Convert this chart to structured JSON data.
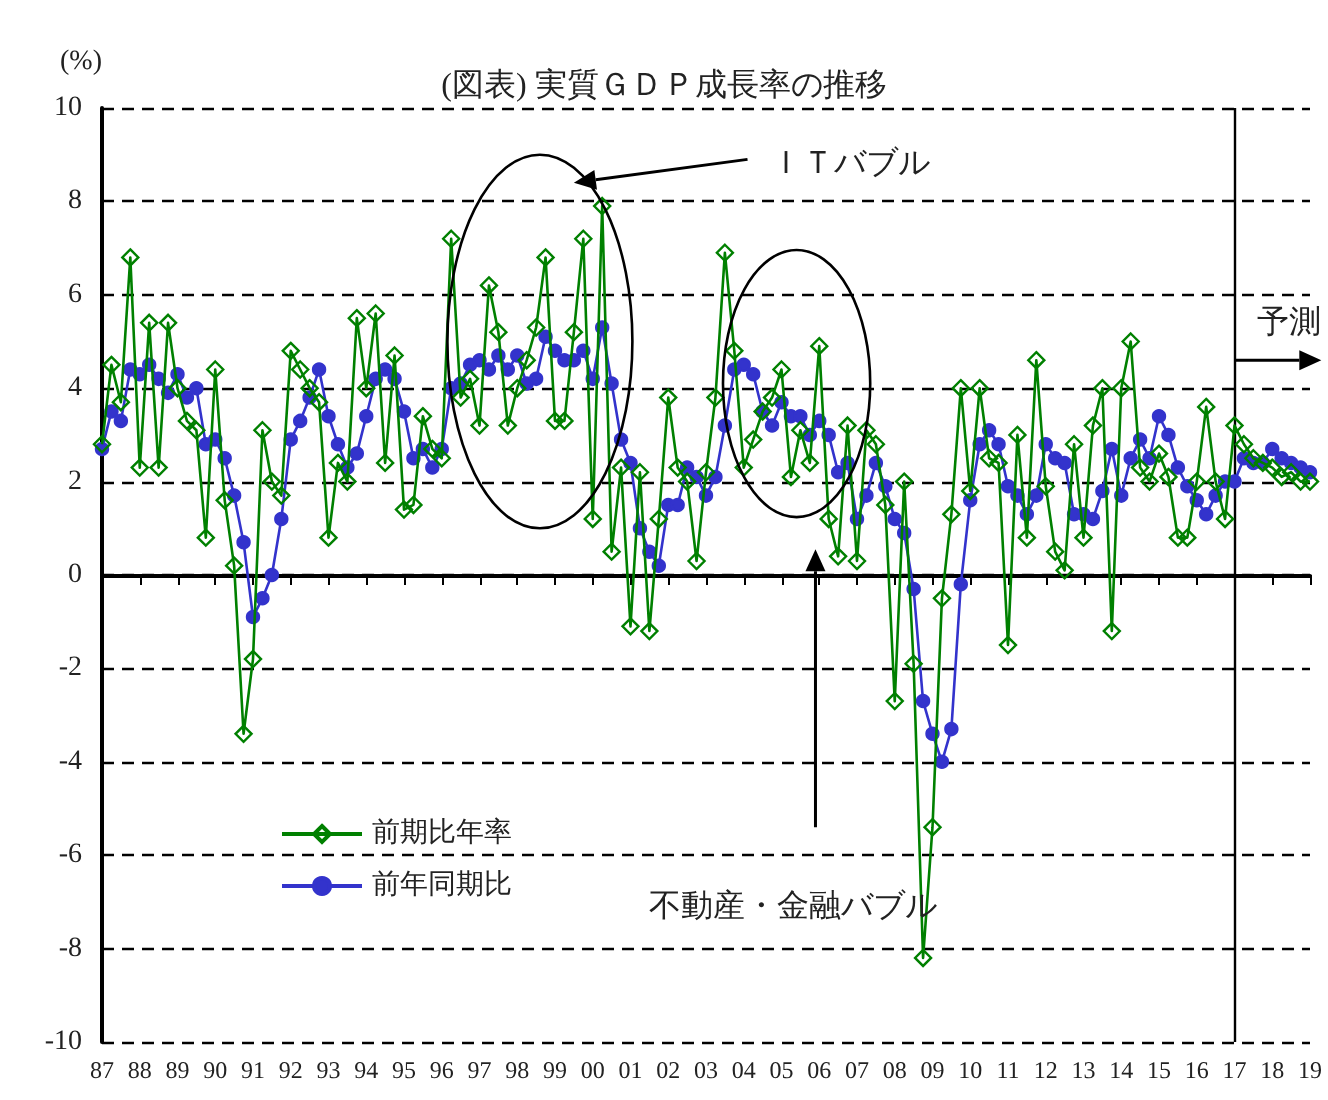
{
  "chart_data": {
    "type": "line",
    "title": "(図表) 実質ＧＤＰ成長率の推移",
    "ylabel": "(%)",
    "xlim": [
      1987,
      2019
    ],
    "xticks": [
      {
        "value": 1987,
        "label": "87"
      },
      {
        "value": 1988,
        "label": "88"
      },
      {
        "value": 1989,
        "label": "89"
      },
      {
        "value": 1990,
        "label": "90"
      },
      {
        "value": 1991,
        "label": "91"
      },
      {
        "value": 1992,
        "label": "92"
      },
      {
        "value": 1993,
        "label": "93"
      },
      {
        "value": 1994,
        "label": "94"
      },
      {
        "value": 1995,
        "label": "95"
      },
      {
        "value": 1996,
        "label": "96"
      },
      {
        "value": 1997,
        "label": "97"
      },
      {
        "value": 1998,
        "label": "98"
      },
      {
        "value": 1999,
        "label": "99"
      },
      {
        "value": 2000,
        "label": "00"
      },
      {
        "value": 2001,
        "label": "01"
      },
      {
        "value": 2002,
        "label": "02"
      },
      {
        "value": 2003,
        "label": "03"
      },
      {
        "value": 2004,
        "label": "04"
      },
      {
        "value": 2005,
        "label": "05"
      },
      {
        "value": 2006,
        "label": "06"
      },
      {
        "value": 2007,
        "label": "07"
      },
      {
        "value": 2008,
        "label": "08"
      },
      {
        "value": 2009,
        "label": "09"
      },
      {
        "value": 2010,
        "label": "10"
      },
      {
        "value": 2011,
        "label": "11"
      },
      {
        "value": 2012,
        "label": "12"
      },
      {
        "value": 2013,
        "label": "13"
      },
      {
        "value": 2014,
        "label": "14"
      },
      {
        "value": 2015,
        "label": "15"
      },
      {
        "value": 2016,
        "label": "16"
      },
      {
        "value": 2017,
        "label": "17"
      },
      {
        "value": 2018,
        "label": "18"
      },
      {
        "value": 2019,
        "label": "19"
      }
    ],
    "ylim": [
      -10,
      10
    ],
    "yticks": [
      -10,
      -8,
      -6,
      -4,
      -2,
      0,
      2,
      4,
      6,
      8,
      10
    ],
    "grid": "y",
    "legend": "bottom left",
    "x": [
      1987,
      1987.25,
      1987.5,
      1987.75,
      1988,
      1988.25,
      1988.5,
      1988.75,
      1989,
      1989.25,
      1989.5,
      1989.75,
      1990,
      1990.25,
      1990.5,
      1990.75,
      1991,
      1991.25,
      1991.5,
      1991.75,
      1992,
      1992.25,
      1992.5,
      1992.75,
      1993,
      1993.25,
      1993.5,
      1993.75,
      1994,
      1994.25,
      1994.5,
      1994.75,
      1995,
      1995.25,
      1995.5,
      1995.75,
      1996,
      1996.25,
      1996.5,
      1996.75,
      1997,
      1997.25,
      1997.5,
      1997.75,
      1998,
      1998.25,
      1998.5,
      1998.75,
      1999,
      1999.25,
      1999.5,
      1999.75,
      2000,
      2000.25,
      2000.5,
      2000.75,
      2001,
      2001.25,
      2001.5,
      2001.75,
      2002,
      2002.25,
      2002.5,
      2002.75,
      2003,
      2003.25,
      2003.5,
      2003.75,
      2004,
      2004.25,
      2004.5,
      2004.75,
      2005,
      2005.25,
      2005.5,
      2005.75,
      2006,
      2006.25,
      2006.5,
      2006.75,
      2007,
      2007.25,
      2007.5,
      2007.75,
      2008,
      2008.25,
      2008.5,
      2008.75,
      2009,
      2009.25,
      2009.5,
      2009.75,
      2010,
      2010.25,
      2010.5,
      2010.75,
      2011,
      2011.25,
      2011.5,
      2011.75,
      2012,
      2012.25,
      2012.5,
      2012.75,
      2013,
      2013.25,
      2013.5,
      2013.75,
      2014,
      2014.25,
      2014.5,
      2014.75,
      2015,
      2015.25,
      2015.5,
      2015.75,
      2016,
      2016.25,
      2016.5,
      2016.75,
      2017,
      2017.25,
      2017.5,
      2017.75,
      2018,
      2018.25,
      2018.5,
      2018.75,
      2019
    ],
    "series": [
      {
        "name": "前期比年率",
        "color": "#008000",
        "marker": "diamond",
        "values": [
          2.8,
          4.5,
          3.7,
          6.8,
          2.3,
          5.4,
          2.3,
          5.4,
          4.0,
          3.3,
          3.1,
          0.8,
          4.4,
          1.6,
          0.2,
          -3.4,
          -1.8,
          3.1,
          2.0,
          1.7,
          4.8,
          4.4,
          4.0,
          3.7,
          0.8,
          2.4,
          2.0,
          5.5,
          4.0,
          5.6,
          2.4,
          4.7,
          1.4,
          1.5,
          3.4,
          2.7,
          2.5,
          7.2,
          3.8,
          4.2,
          3.2,
          6.2,
          5.2,
          3.2,
          4.0,
          4.6,
          5.3,
          6.8,
          3.3,
          3.3,
          5.2,
          7.2,
          1.2,
          7.9,
          0.5,
          2.3,
          -1.1,
          2.2,
          -1.2,
          1.2,
          3.8,
          2.3,
          2.0,
          0.3,
          2.2,
          3.8,
          6.9,
          4.8,
          2.3,
          2.9,
          3.5,
          3.8,
          4.4,
          2.1,
          3.1,
          2.4,
          4.9,
          1.2,
          0.4,
          3.2,
          0.3,
          3.1,
          2.8,
          1.5,
          -2.7,
          2.0,
          -1.9,
          -8.2,
          -5.4,
          -0.5,
          1.3,
          4.0,
          1.8,
          4.0,
          2.5,
          2.4,
          -1.5,
          3.0,
          0.8,
          4.6,
          1.9,
          0.5,
          0.1,
          2.8,
          0.8,
          3.2,
          4.0,
          -1.2,
          4.0,
          5.0,
          2.3,
          2.0,
          2.6,
          2.1,
          0.8,
          0.8,
          2.0,
          3.6,
          2.0,
          1.2,
          3.2,
          2.8,
          2.5,
          2.4,
          2.3,
          2.1,
          2.2,
          2.0,
          2.0
        ]
      },
      {
        "name": "前年同期比",
        "color": "#3333cc",
        "marker": "circle",
        "values": [
          2.7,
          3.5,
          3.3,
          4.4,
          4.3,
          4.5,
          4.2,
          3.9,
          4.3,
          3.8,
          4.0,
          2.8,
          2.9,
          2.5,
          1.7,
          0.7,
          -0.9,
          -0.5,
          0.0,
          1.2,
          2.9,
          3.3,
          3.8,
          4.4,
          3.4,
          2.8,
          2.3,
          2.6,
          3.4,
          4.2,
          4.4,
          4.2,
          3.5,
          2.5,
          2.7,
          2.3,
          2.7,
          4.0,
          4.1,
          4.5,
          4.6,
          4.4,
          4.7,
          4.4,
          4.7,
          4.1,
          4.2,
          5.1,
          4.8,
          4.6,
          4.6,
          4.8,
          4.2,
          5.3,
          4.1,
          2.9,
          2.4,
          1.0,
          0.5,
          0.2,
          1.5,
          1.5,
          2.3,
          2.1,
          1.7,
          2.1,
          3.2,
          4.4,
          4.5,
          4.3,
          3.5,
          3.2,
          3.7,
          3.4,
          3.4,
          3.0,
          3.3,
          3.0,
          2.2,
          2.4,
          1.2,
          1.7,
          2.4,
          1.9,
          1.2,
          0.9,
          -0.3,
          -2.7,
          -3.4,
          -4.0,
          -3.3,
          -0.2,
          1.6,
          2.8,
          3.1,
          2.8,
          1.9,
          1.7,
          1.3,
          1.7,
          2.8,
          2.5,
          2.4,
          1.3,
          1.3,
          1.2,
          1.8,
          2.7,
          1.7,
          2.5,
          2.9,
          2.5,
          3.4,
          3.0,
          2.3,
          1.9,
          1.6,
          1.3,
          1.7,
          2.0,
          2.0,
          2.5,
          2.4,
          2.4,
          2.7,
          2.5,
          2.4,
          2.3,
          2.2
        ]
      }
    ],
    "ref_lines": [
      {
        "axis": "x",
        "value": 2017,
        "label": "予測",
        "color": "#000000"
      }
    ],
    "annotations": [
      "ＩＴバブル",
      "不動産・金融バブル"
    ]
  }
}
